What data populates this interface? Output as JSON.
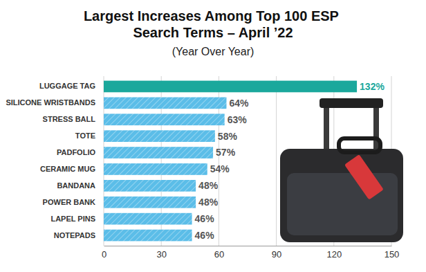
{
  "chart_data": {
    "type": "bar",
    "orientation": "horizontal",
    "title": "Largest Increases Among Top 100 ESP Search Terms – April ’22",
    "subtitle": "(Year Over Year)",
    "categories": [
      "LUGGAGE TAG",
      "SILICONE WRISTBANDS",
      "STRESS BALL",
      "TOTE",
      "PADFOLIO",
      "CERAMIC MUG",
      "BANDANA",
      "POWER BANK",
      "LAPEL PINS",
      "NOTEPADS"
    ],
    "values": [
      132,
      64,
      63,
      58,
      57,
      54,
      48,
      48,
      46,
      46
    ],
    "value_labels": [
      "132%",
      "64%",
      "63%",
      "58%",
      "57%",
      "54%",
      "48%",
      "48%",
      "46%",
      "46%"
    ],
    "colors": [
      "#1ba89c",
      "#5bbde8",
      "#5bbde8",
      "#5bbde8",
      "#5bbde8",
      "#5bbde8",
      "#5bbde8",
      "#5bbde8",
      "#5bbde8",
      "#5bbde8"
    ],
    "xlim": [
      0,
      150
    ],
    "xticks": [
      0,
      30,
      60,
      90,
      120,
      150
    ],
    "grid": true,
    "data_labels": true
  }
}
